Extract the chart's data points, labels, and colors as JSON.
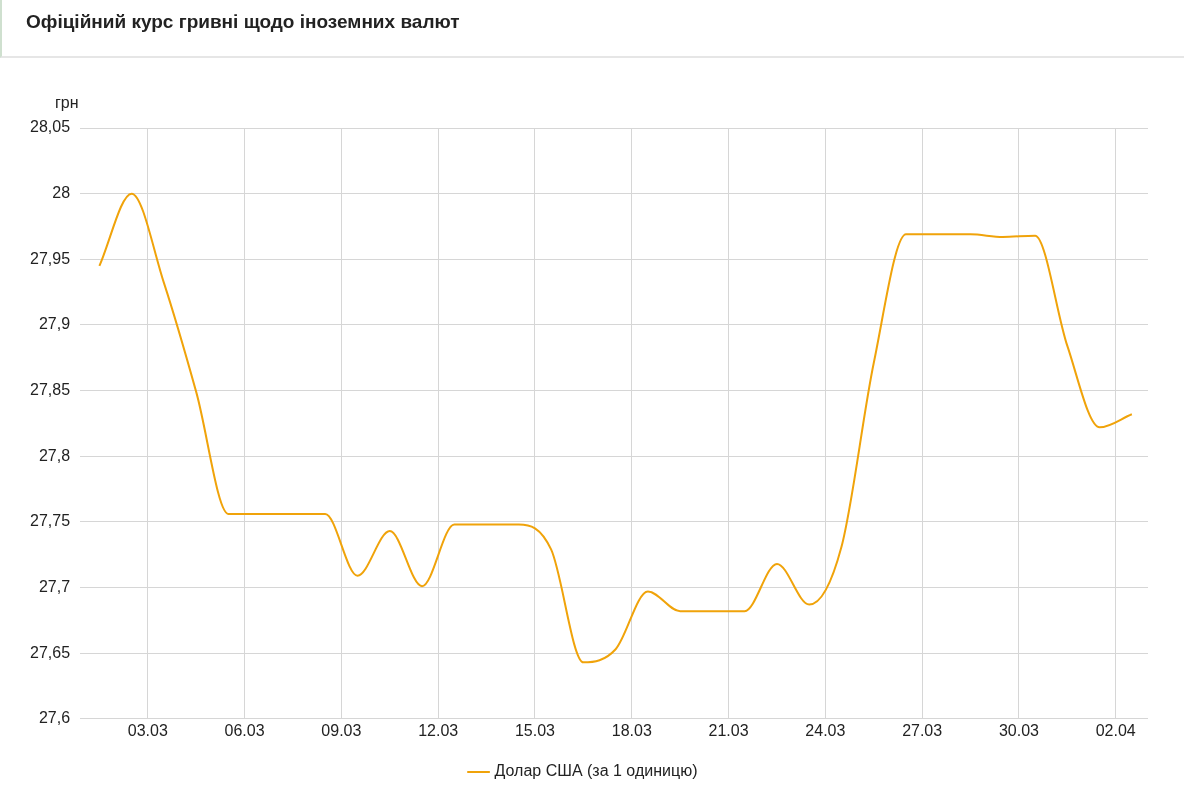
{
  "chart_data": {
    "type": "line",
    "title": "Офіційний курс гривні щодо іноземних валют",
    "ylabel": "грн",
    "x": [
      "--03-01T12:00",
      "--03-02T12:00",
      "--03-03T12:00",
      "--03-04T12:00",
      "--03-05T12:00",
      "--03-06T12:00",
      "--03-07T12:00",
      "--03-08T12:00",
      "--03-09T12:00",
      "--03-10T12:00",
      "--03-11T12:00",
      "--03-12T12:00",
      "--03-13T12:00",
      "--03-14T12:00",
      "--03-15T12:00",
      "--03-16T12:00",
      "--03-17T12:00",
      "--03-18T12:00",
      "--03-19T12:00",
      "--03-20T12:00",
      "--03-21T12:00",
      "--03-22T12:00",
      "--03-23T12:00",
      "--03-24T12:00",
      "--03-25T12:00",
      "--03-26T12:00",
      "--03-27T12:00",
      "--03-28T12:00",
      "--03-29T12:00",
      "--03-30T12:00",
      "--03-31T12:00",
      "--04-01T12:00",
      "--04-02T12:00"
    ],
    "series": [
      {
        "name": "Долар США (за 1 одиницю)",
        "color": "#f0a30a",
        "values": [
          27.945,
          28.0,
          27.932,
          27.849,
          27.756,
          27.756,
          27.756,
          27.756,
          27.709,
          27.743,
          27.701,
          27.748,
          27.748,
          27.748,
          27.729,
          27.643,
          27.653,
          27.697,
          27.682,
          27.682,
          27.682,
          27.718,
          27.687,
          27.731,
          27.871,
          27.969,
          27.969,
          27.969,
          27.967,
          27.968,
          27.884,
          27.822,
          27.832
        ]
      }
    ],
    "xlim": [
      "--02-28T21:36",
      "--04-03"
    ],
    "xticks": [
      {
        "value": "--03-03",
        "label": "03.03"
      },
      {
        "value": "--03-06",
        "label": "06.03"
      },
      {
        "value": "--03-09",
        "label": "09.03"
      },
      {
        "value": "--03-12",
        "label": "12.03"
      },
      {
        "value": "--03-15",
        "label": "15.03"
      },
      {
        "value": "--03-18",
        "label": "18.03"
      },
      {
        "value": "--03-21",
        "label": "21.03"
      },
      {
        "value": "--03-24",
        "label": "24.03"
      },
      {
        "value": "--03-27",
        "label": "27.03"
      },
      {
        "value": "--03-30",
        "label": "30.03"
      },
      {
        "value": "--04-02",
        "label": "02.04"
      }
    ],
    "ylim": [
      27.6,
      28.05
    ],
    "yticks": [
      {
        "value": 27.6,
        "label": "27,6"
      },
      {
        "value": 27.65,
        "label": "27,65"
      },
      {
        "value": 27.7,
        "label": "27,7"
      },
      {
        "value": 27.75,
        "label": "27,75"
      },
      {
        "value": 27.8,
        "label": "27,8"
      },
      {
        "value": 27.85,
        "label": "27,85"
      },
      {
        "value": 27.9,
        "label": "27,9"
      },
      {
        "value": 27.95,
        "label": "27,95"
      },
      {
        "value": 28,
        "label": "28"
      },
      {
        "value": 28.05,
        "label": "28,05"
      }
    ],
    "grid": true,
    "legend": "bottom",
    "marker": "none",
    "line_style": "solid"
  }
}
